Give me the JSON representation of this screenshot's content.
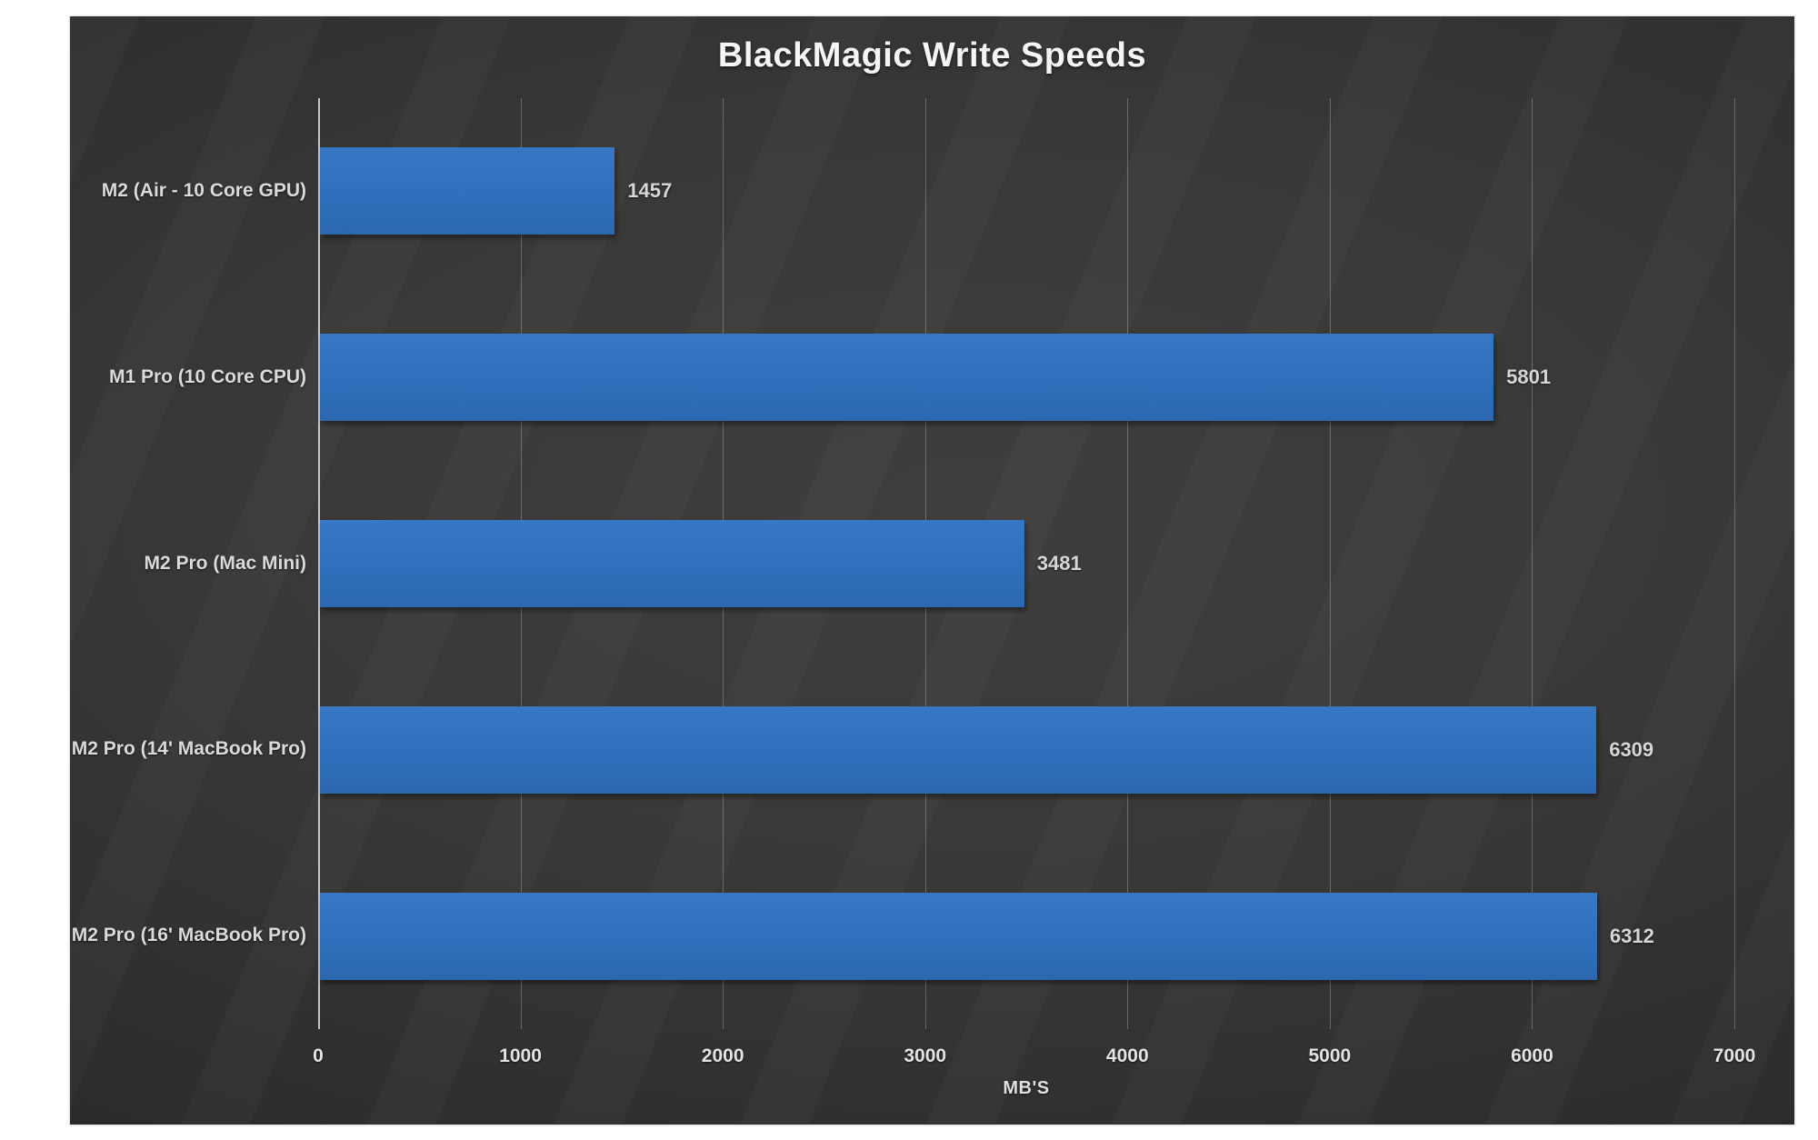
{
  "chart_data": {
    "type": "bar",
    "orientation": "horizontal",
    "title": "BlackMagic Write Speeds",
    "categories": [
      "M2 (Air - 10 Core GPU)",
      "M1 Pro (10 Core CPU)",
      "M2 Pro (Mac Mini)",
      "M2 Pro (14' MacBook Pro)",
      "M2 Pro (16' MacBook Pro)"
    ],
    "values": [
      1457,
      5801,
      3481,
      6309,
      6312
    ],
    "data_labels": [
      "1457",
      "5801",
      "3481",
      "6309",
      "6312"
    ],
    "xlabel": "MB'S",
    "xlim": [
      0,
      7000
    ],
    "xticks": [
      0,
      1000,
      2000,
      3000,
      4000,
      5000,
      6000,
      7000
    ],
    "grid": true,
    "legend": false,
    "colors": {
      "bar": "#2f70bc",
      "title_text": "#f5f5f5",
      "category_text": "#dadada",
      "value_text": "#d6d6d6",
      "tick_text": "#e3e3e3",
      "gridline": "rgba(255,255,255,0.25)",
      "axis_line": "rgba(225,225,225,0.85)",
      "panel_bg_center": "#413f3e",
      "panel_bg_edge": "#262524",
      "page_bg": "#ffffff"
    }
  }
}
